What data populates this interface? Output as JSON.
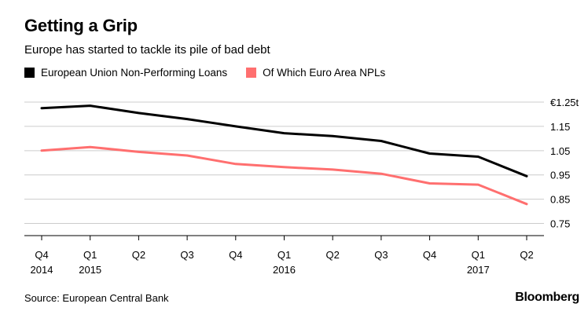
{
  "title": "Getting a Grip",
  "subtitle": "Europe has started to tackle its pile of bad debt",
  "source": "Source: European Central Bank",
  "brand": "Bloomberg",
  "colors": {
    "eu": "#000000",
    "euro_area": "#ff6f6f",
    "grid": "#cccccc"
  },
  "chart_data": {
    "type": "line",
    "title": "Getting a Grip",
    "subtitle": "Europe has started to tackle its pile of bad debt",
    "categories": [
      "Q4\n2014",
      "Q1\n2015",
      "Q2",
      "Q3",
      "Q4",
      "Q1\n2016",
      "Q2",
      "Q3",
      "Q4",
      "Q1\n2017",
      "Q2"
    ],
    "series": [
      {
        "name": "European Union Non-Performing Loans",
        "values": [
          1.225,
          1.235,
          1.205,
          1.18,
          1.15,
          1.122,
          1.11,
          1.09,
          1.038,
          1.025,
          0.945
        ]
      },
      {
        "name": "Of Which Euro Area NPLs",
        "values": [
          1.05,
          1.065,
          1.045,
          1.03,
          0.995,
          0.982,
          0.972,
          0.955,
          0.915,
          0.91,
          0.83
        ]
      }
    ],
    "y_ticks": [
      "€1.25t",
      "1.15",
      "1.05",
      "0.95",
      "0.85",
      "0.75"
    ],
    "y_tick_values": [
      1.25,
      1.15,
      1.05,
      0.95,
      0.85,
      0.75
    ],
    "ylim": [
      0.7,
      1.25
    ],
    "grid": true,
    "legend": "top-left"
  }
}
